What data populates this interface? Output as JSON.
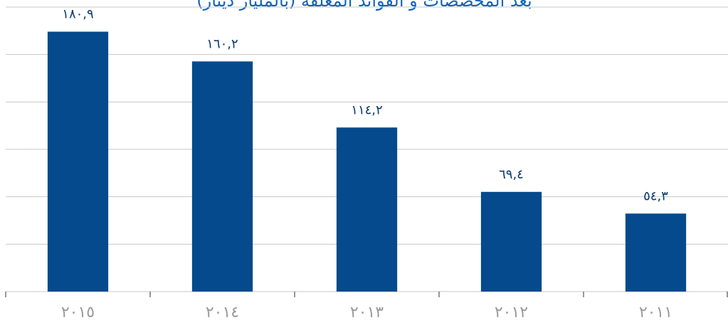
{
  "chart_data": {
    "type": "bar",
    "title": "بعد المخصصات و الفوائد المعلقة (بالمليار دينار)",
    "categories": [
      "٢٠١٥",
      "٢٠١٤",
      "٢٠١٣",
      "٢٠١٢",
      "٢٠١١"
    ],
    "values": [
      180.9,
      160.2,
      114.2,
      69.4,
      54.3
    ],
    "value_labels": [
      "١٨٠,٩",
      "١٦٠,٢",
      "١١٤,٢",
      "٦٩,٤",
      "٥٤,٣"
    ],
    "color": "#044a8c",
    "ylim": [
      0,
      198
    ],
    "yticks": [
      0,
      33,
      66,
      99,
      132,
      165,
      198
    ],
    "grid": true
  }
}
